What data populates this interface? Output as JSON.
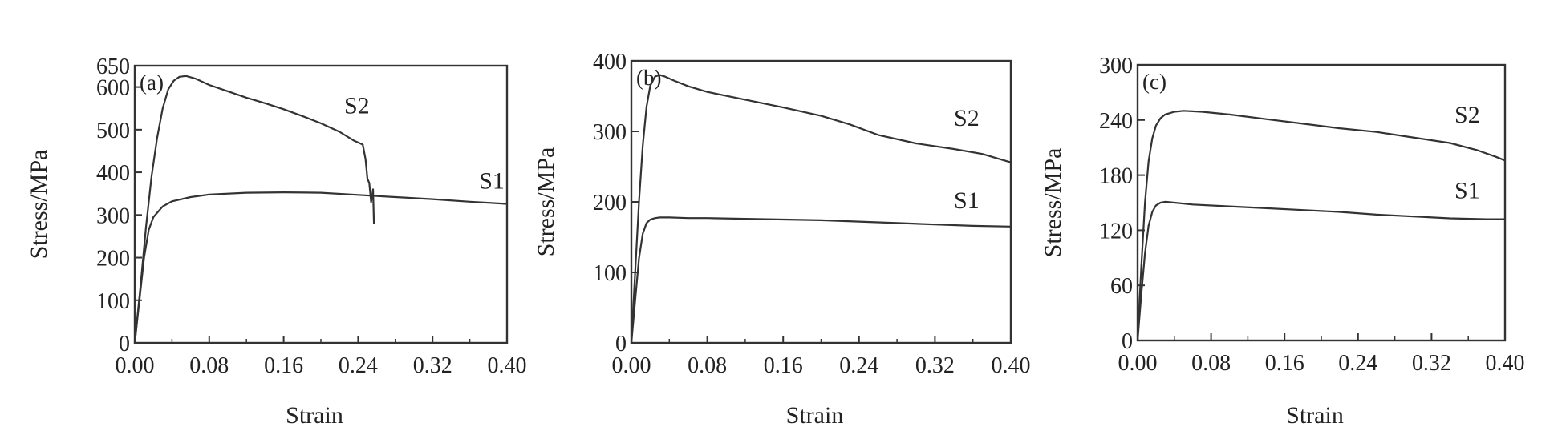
{
  "chart_data": [
    {
      "type": "line",
      "panel_label": "(a)",
      "xlabel": "Strain",
      "ylabel": "Stress/MPa",
      "xlim": [
        0,
        0.4
      ],
      "ylim": [
        0,
        650
      ],
      "xticks": [
        "0.00",
        "0.08",
        "0.16",
        "0.24",
        "0.32",
        "0.40"
      ],
      "xtick_values": [
        0,
        0.08,
        0.16,
        0.24,
        0.32,
        0.4
      ],
      "yticks": [
        "0",
        "100",
        "200",
        "300",
        "400",
        "500",
        "600",
        "650"
      ],
      "ytick_values": [
        0,
        100,
        200,
        300,
        400,
        500,
        600,
        650
      ],
      "line_color": "#333333",
      "series": [
        {
          "name": "S1",
          "x": [
            0,
            0.005,
            0.01,
            0.015,
            0.02,
            0.03,
            0.04,
            0.06,
            0.08,
            0.12,
            0.16,
            0.2,
            0.24,
            0.28,
            0.32,
            0.36,
            0.4
          ],
          "y": [
            0,
            100,
            200,
            265,
            295,
            320,
            332,
            342,
            348,
            352,
            353,
            352,
            347,
            342,
            337,
            331,
            326
          ]
        },
        {
          "name": "S2",
          "x": [
            0,
            0.006,
            0.012,
            0.018,
            0.024,
            0.03,
            0.036,
            0.042,
            0.048,
            0.055,
            0.065,
            0.08,
            0.1,
            0.12,
            0.14,
            0.16,
            0.18,
            0.2,
            0.22,
            0.235,
            0.245,
            0.248,
            0.25,
            0.252,
            0.254,
            0.256,
            0.257
          ],
          "y": [
            0,
            130,
            270,
            390,
            480,
            550,
            595,
            615,
            624,
            626,
            620,
            605,
            590,
            575,
            562,
            548,
            532,
            515,
            495,
            475,
            465,
            430,
            385,
            375,
            330,
            360,
            280
          ]
        }
      ],
      "annotations": [
        {
          "text": "S2",
          "x": 0.225,
          "y": 538
        },
        {
          "text": "S1",
          "x": 0.37,
          "y": 362
        }
      ]
    },
    {
      "type": "line",
      "panel_label": "(b)",
      "xlabel": "Strain",
      "ylabel": "Stress/MPa",
      "xlim": [
        0,
        0.4
      ],
      "ylim": [
        0,
        400
      ],
      "xticks": [
        "0.00",
        "0.08",
        "0.16",
        "0.24",
        "0.32",
        "0.40"
      ],
      "xtick_values": [
        0,
        0.08,
        0.16,
        0.24,
        0.32,
        0.4
      ],
      "yticks": [
        "0",
        "100",
        "200",
        "300",
        "400"
      ],
      "ytick_values": [
        0,
        100,
        200,
        300,
        400
      ],
      "line_color": "#333333",
      "series": [
        {
          "name": "S1",
          "x": [
            0,
            0.004,
            0.008,
            0.012,
            0.016,
            0.02,
            0.025,
            0.03,
            0.04,
            0.06,
            0.08,
            0.12,
            0.16,
            0.2,
            0.24,
            0.28,
            0.32,
            0.36,
            0.4
          ],
          "y": [
            0,
            60,
            120,
            155,
            170,
            175,
            177,
            178,
            178,
            177,
            177,
            176,
            175,
            174,
            172,
            170,
            168,
            166,
            165
          ]
        },
        {
          "name": "S2",
          "x": [
            0,
            0.004,
            0.008,
            0.012,
            0.016,
            0.02,
            0.025,
            0.03,
            0.035,
            0.045,
            0.06,
            0.08,
            0.12,
            0.16,
            0.2,
            0.23,
            0.26,
            0.3,
            0.34,
            0.37,
            0.4
          ],
          "y": [
            0,
            100,
            200,
            280,
            335,
            365,
            378,
            380,
            378,
            372,
            364,
            356,
            345,
            334,
            322,
            310,
            295,
            283,
            275,
            268,
            256
          ]
        }
      ],
      "annotations": [
        {
          "text": "S2",
          "x": 0.34,
          "y": 308
        },
        {
          "text": "S1",
          "x": 0.34,
          "y": 191
        }
      ]
    },
    {
      "type": "line",
      "panel_label": "(c)",
      "xlabel": "Strain",
      "ylabel": "Stress/MPa",
      "xlim": [
        0,
        0.4
      ],
      "ylim": [
        0,
        300
      ],
      "xticks": [
        "0.00",
        "0.08",
        "0.16",
        "0.24",
        "0.32",
        "0.40"
      ],
      "xtick_values": [
        0,
        0.08,
        0.16,
        0.24,
        0.32,
        0.4
      ],
      "yticks": [
        "0",
        "60",
        "120",
        "180",
        "240",
        "300"
      ],
      "ytick_values": [
        0,
        60,
        120,
        180,
        240,
        300
      ],
      "line_color": "#333333",
      "series": [
        {
          "name": "S1",
          "x": [
            0,
            0.004,
            0.008,
            0.012,
            0.016,
            0.02,
            0.025,
            0.03,
            0.04,
            0.06,
            0.1,
            0.14,
            0.18,
            0.22,
            0.26,
            0.3,
            0.34,
            0.38,
            0.4
          ],
          "y": [
            0,
            50,
            95,
            125,
            140,
            147,
            150,
            151,
            150,
            148,
            146,
            144,
            142,
            140,
            137,
            135,
            133,
            132,
            132
          ]
        },
        {
          "name": "S2",
          "x": [
            0,
            0.004,
            0.008,
            0.012,
            0.016,
            0.02,
            0.025,
            0.03,
            0.04,
            0.05,
            0.07,
            0.1,
            0.14,
            0.18,
            0.22,
            0.26,
            0.3,
            0.34,
            0.37,
            0.39,
            0.4
          ],
          "y": [
            0,
            80,
            150,
            195,
            220,
            234,
            242,
            246,
            249,
            250,
            249,
            246,
            241,
            236,
            231,
            227,
            221,
            215,
            207,
            200,
            196
          ]
        }
      ],
      "annotations": [
        {
          "text": "S2",
          "x": 0.345,
          "y": 237
        },
        {
          "text": "S1",
          "x": 0.345,
          "y": 155
        }
      ]
    }
  ]
}
